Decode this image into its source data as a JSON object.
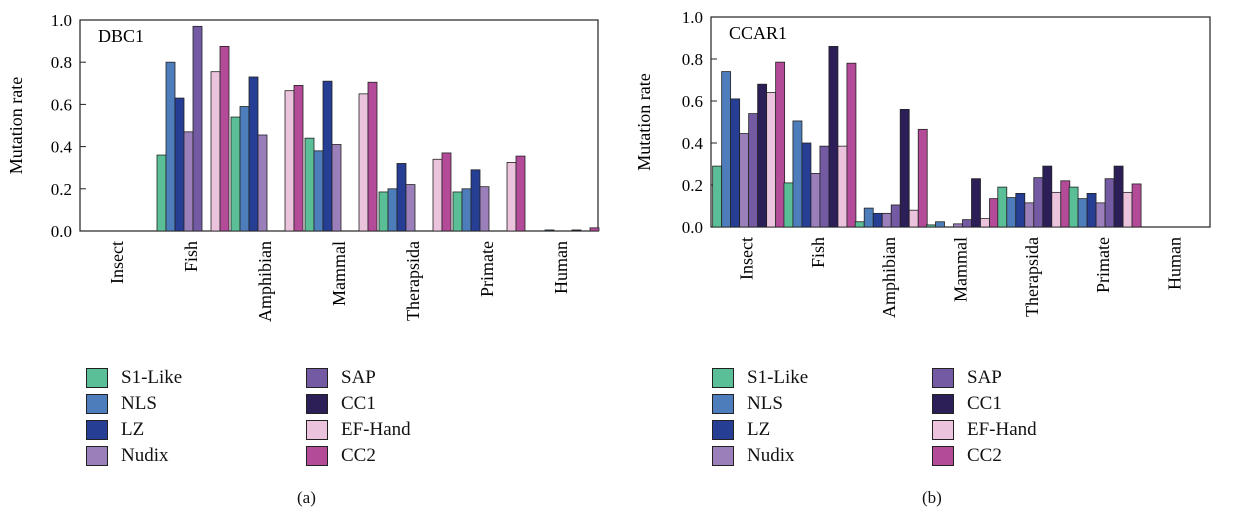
{
  "series_colors": {
    "S1-Like": "#5abf96",
    "NLS": "#4d7ebb",
    "LZ": "#263f95",
    "Nudix": "#9b7fba",
    "SAP": "#735aa3",
    "CC1": "#2c1f58",
    "EF-Hand": "#ecc3dc",
    "CC2": "#b44b98"
  },
  "legend": [
    "S1-Like",
    "NLS",
    "LZ",
    "Nudix",
    "SAP",
    "CC1",
    "EF-Hand",
    "CC2"
  ],
  "chart_data": [
    {
      "id": "a",
      "type": "bar",
      "title": "DBC1",
      "caption": "(a)",
      "xlabel": "",
      "ylabel": "Mutation rate",
      "ylim": [
        0,
        1
      ],
      "yticks": [
        "0.0",
        "0.2",
        "0.4",
        "0.6",
        "0.8",
        "1.0"
      ],
      "categories": [
        "Insect",
        "Fish",
        "Amphibian",
        "Mammal",
        "Therapsida",
        "Primate",
        "Human"
      ],
      "series": [
        {
          "name": "S1-Like",
          "values": [
            0,
            0.36,
            0.54,
            0.44,
            0.185,
            0.185,
            0
          ]
        },
        {
          "name": "NLS",
          "values": [
            0,
            0.8,
            0.59,
            0.38,
            0.2,
            0.2,
            0
          ]
        },
        {
          "name": "LZ",
          "values": [
            0,
            0.63,
            0.73,
            0.71,
            0.32,
            0.29,
            0.005
          ]
        },
        {
          "name": "Nudix",
          "values": [
            0,
            0.47,
            0.455,
            0.41,
            0.22,
            0.21,
            0
          ]
        },
        {
          "name": "SAP",
          "values": [
            0,
            0.97,
            0,
            0,
            0,
            0,
            0
          ]
        },
        {
          "name": "CC1",
          "values": [
            0,
            0,
            0,
            0,
            0,
            0,
            0.005
          ]
        },
        {
          "name": "EF-Hand",
          "values": [
            0,
            0.755,
            0.665,
            0.65,
            0.34,
            0.325,
            0
          ]
        },
        {
          "name": "CC2",
          "values": [
            0,
            0.875,
            0.69,
            0.705,
            0.37,
            0.355,
            0.015
          ]
        }
      ]
    },
    {
      "id": "b",
      "type": "bar",
      "title": "CCAR1",
      "caption": "(b)",
      "xlabel": "",
      "ylabel": "Mutation rate",
      "ylim": [
        0,
        1
      ],
      "yticks": [
        "0.0",
        "0.2",
        "0.4",
        "0.6",
        "0.8",
        "1.0"
      ],
      "categories": [
        "Insect",
        "Fish",
        "Amphibian",
        "Mammal",
        "Therapsida",
        "Primate",
        "Human"
      ],
      "series": [
        {
          "name": "S1-Like",
          "values": [
            0.29,
            0.21,
            0.025,
            0.01,
            0.19,
            0.19,
            0
          ]
        },
        {
          "name": "NLS",
          "values": [
            0.74,
            0.505,
            0.09,
            0.025,
            0.14,
            0.135,
            0
          ]
        },
        {
          "name": "LZ",
          "values": [
            0.61,
            0.4,
            0.065,
            0,
            0.16,
            0.16,
            0
          ]
        },
        {
          "name": "Nudix",
          "values": [
            0.445,
            0.255,
            0.065,
            0.015,
            0.115,
            0.115,
            0
          ]
        },
        {
          "name": "SAP",
          "values": [
            0.54,
            0.385,
            0.105,
            0.035,
            0.235,
            0.23,
            0
          ]
        },
        {
          "name": "CC1",
          "values": [
            0.68,
            0.86,
            0.56,
            0.23,
            0.29,
            0.29,
            0
          ]
        },
        {
          "name": "EF-Hand",
          "values": [
            0.64,
            0.385,
            0.08,
            0.04,
            0.165,
            0.165,
            0
          ]
        },
        {
          "name": "CC2",
          "values": [
            0.785,
            0.78,
            0.465,
            0.135,
            0.22,
            0.205,
            0
          ]
        }
      ]
    }
  ]
}
